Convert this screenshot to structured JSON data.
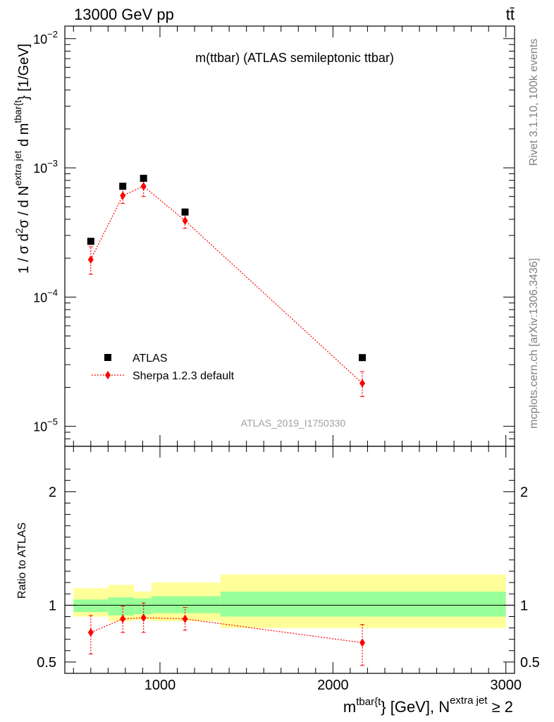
{
  "header": {
    "left_label": "13000 GeV pp",
    "right_label": "tt̄"
  },
  "side_labels": {
    "rivet": "Rivet 3.1.10,  100k events",
    "mcplots": "mcplots.cern.ch [arXiv:1306.3436]"
  },
  "chart_data": [
    {
      "type": "scatter",
      "title": "m(ttbar) (ATLAS semileptonic ttbar)",
      "analysis_label": "ATLAS_2019_I1750330",
      "ylabel_parts": [
        "1 / σ d",
        "2",
        "σ /  d N",
        "extra jet",
        " d m",
        "tbar{t",
        "} [1/GeV]"
      ],
      "yscale": "log",
      "ylim": [
        7e-06,
        0.0125
      ],
      "xlim": [
        450,
        3050
      ],
      "y_tick_labels": [
        {
          "base": "10",
          "exp": "−5",
          "value": 1e-05
        },
        {
          "base": "10",
          "exp": "−4",
          "value": 0.0001
        },
        {
          "base": "10",
          "exp": "−3",
          "value": 0.001
        },
        {
          "base": "10",
          "exp": "−2",
          "value": 0.01
        }
      ],
      "legend": [
        {
          "label": "ATLAS",
          "marker": "square",
          "color": "#000000"
        },
        {
          "label": "Sherpa 1.2.3 default",
          "marker": "diamond",
          "color": "#ff0000"
        }
      ],
      "legend_position": "bottom-left",
      "series": [
        {
          "name": "ATLAS",
          "x": [
            600,
            785,
            905,
            1145,
            2170
          ],
          "y": [
            0.00027,
            0.00072,
            0.00083,
            0.000455,
            3.4e-05
          ]
        },
        {
          "name": "Sherpa 1.2.3 default",
          "x": [
            600,
            785,
            905,
            1145,
            2170
          ],
          "y": [
            0.000195,
            0.00061,
            0.00072,
            0.00039,
            2.15e-05
          ],
          "y_err_low": [
            0.00015,
            0.00053,
            0.0006,
            0.00034,
            1.7e-05
          ],
          "y_err_high": [
            0.000245,
            0.00069,
            0.00083,
            0.00044,
            2.65e-05
          ]
        }
      ]
    },
    {
      "type": "scatter",
      "ylabel": "Ratio to ATLAS",
      "xlabel_parts": [
        "m",
        "tbar{t",
        "} [GeV], N",
        "extra jet",
        " ≥ 2"
      ],
      "ylim": [
        0.4,
        2.4
      ],
      "xlim": [
        450,
        3050
      ],
      "x_tick_labels": [
        "1000",
        "2000",
        "3000"
      ],
      "x_ticks": [
        1000,
        2000,
        3000
      ],
      "y_tick_labels": [
        "0.5",
        "1",
        "2"
      ],
      "y_ticks": [
        0.5,
        1,
        2
      ],
      "bands": [
        {
          "x0": 500,
          "x1": 700,
          "inner": [
            0.94,
            1.05
          ],
          "outer": [
            0.9,
            1.15
          ]
        },
        {
          "x0": 700,
          "x1": 850,
          "inner": [
            0.91,
            1.07
          ],
          "outer": [
            0.86,
            1.18
          ]
        },
        {
          "x0": 850,
          "x1": 950,
          "inner": [
            0.92,
            1.06
          ],
          "outer": [
            0.87,
            1.12
          ]
        },
        {
          "x0": 950,
          "x1": 1350,
          "inner": [
            0.93,
            1.08
          ],
          "outer": [
            0.86,
            1.2
          ]
        },
        {
          "x0": 1350,
          "x1": 3000,
          "inner": [
            0.9,
            1.12
          ],
          "outer": [
            0.8,
            1.27
          ]
        }
      ],
      "band_colors": {
        "inner": "#99ff99",
        "outer": "#ffff99"
      },
      "series": [
        {
          "name": "Sherpa 1.2.3 default",
          "x": [
            600,
            785,
            905,
            1145,
            2170
          ],
          "y": [
            0.76,
            0.88,
            0.89,
            0.88,
            0.67
          ],
          "y_err_low": [
            0.57,
            0.76,
            0.76,
            0.78,
            0.47
          ],
          "y_err_high": [
            0.91,
            0.99,
            1.02,
            0.98,
            0.83
          ]
        }
      ]
    }
  ]
}
